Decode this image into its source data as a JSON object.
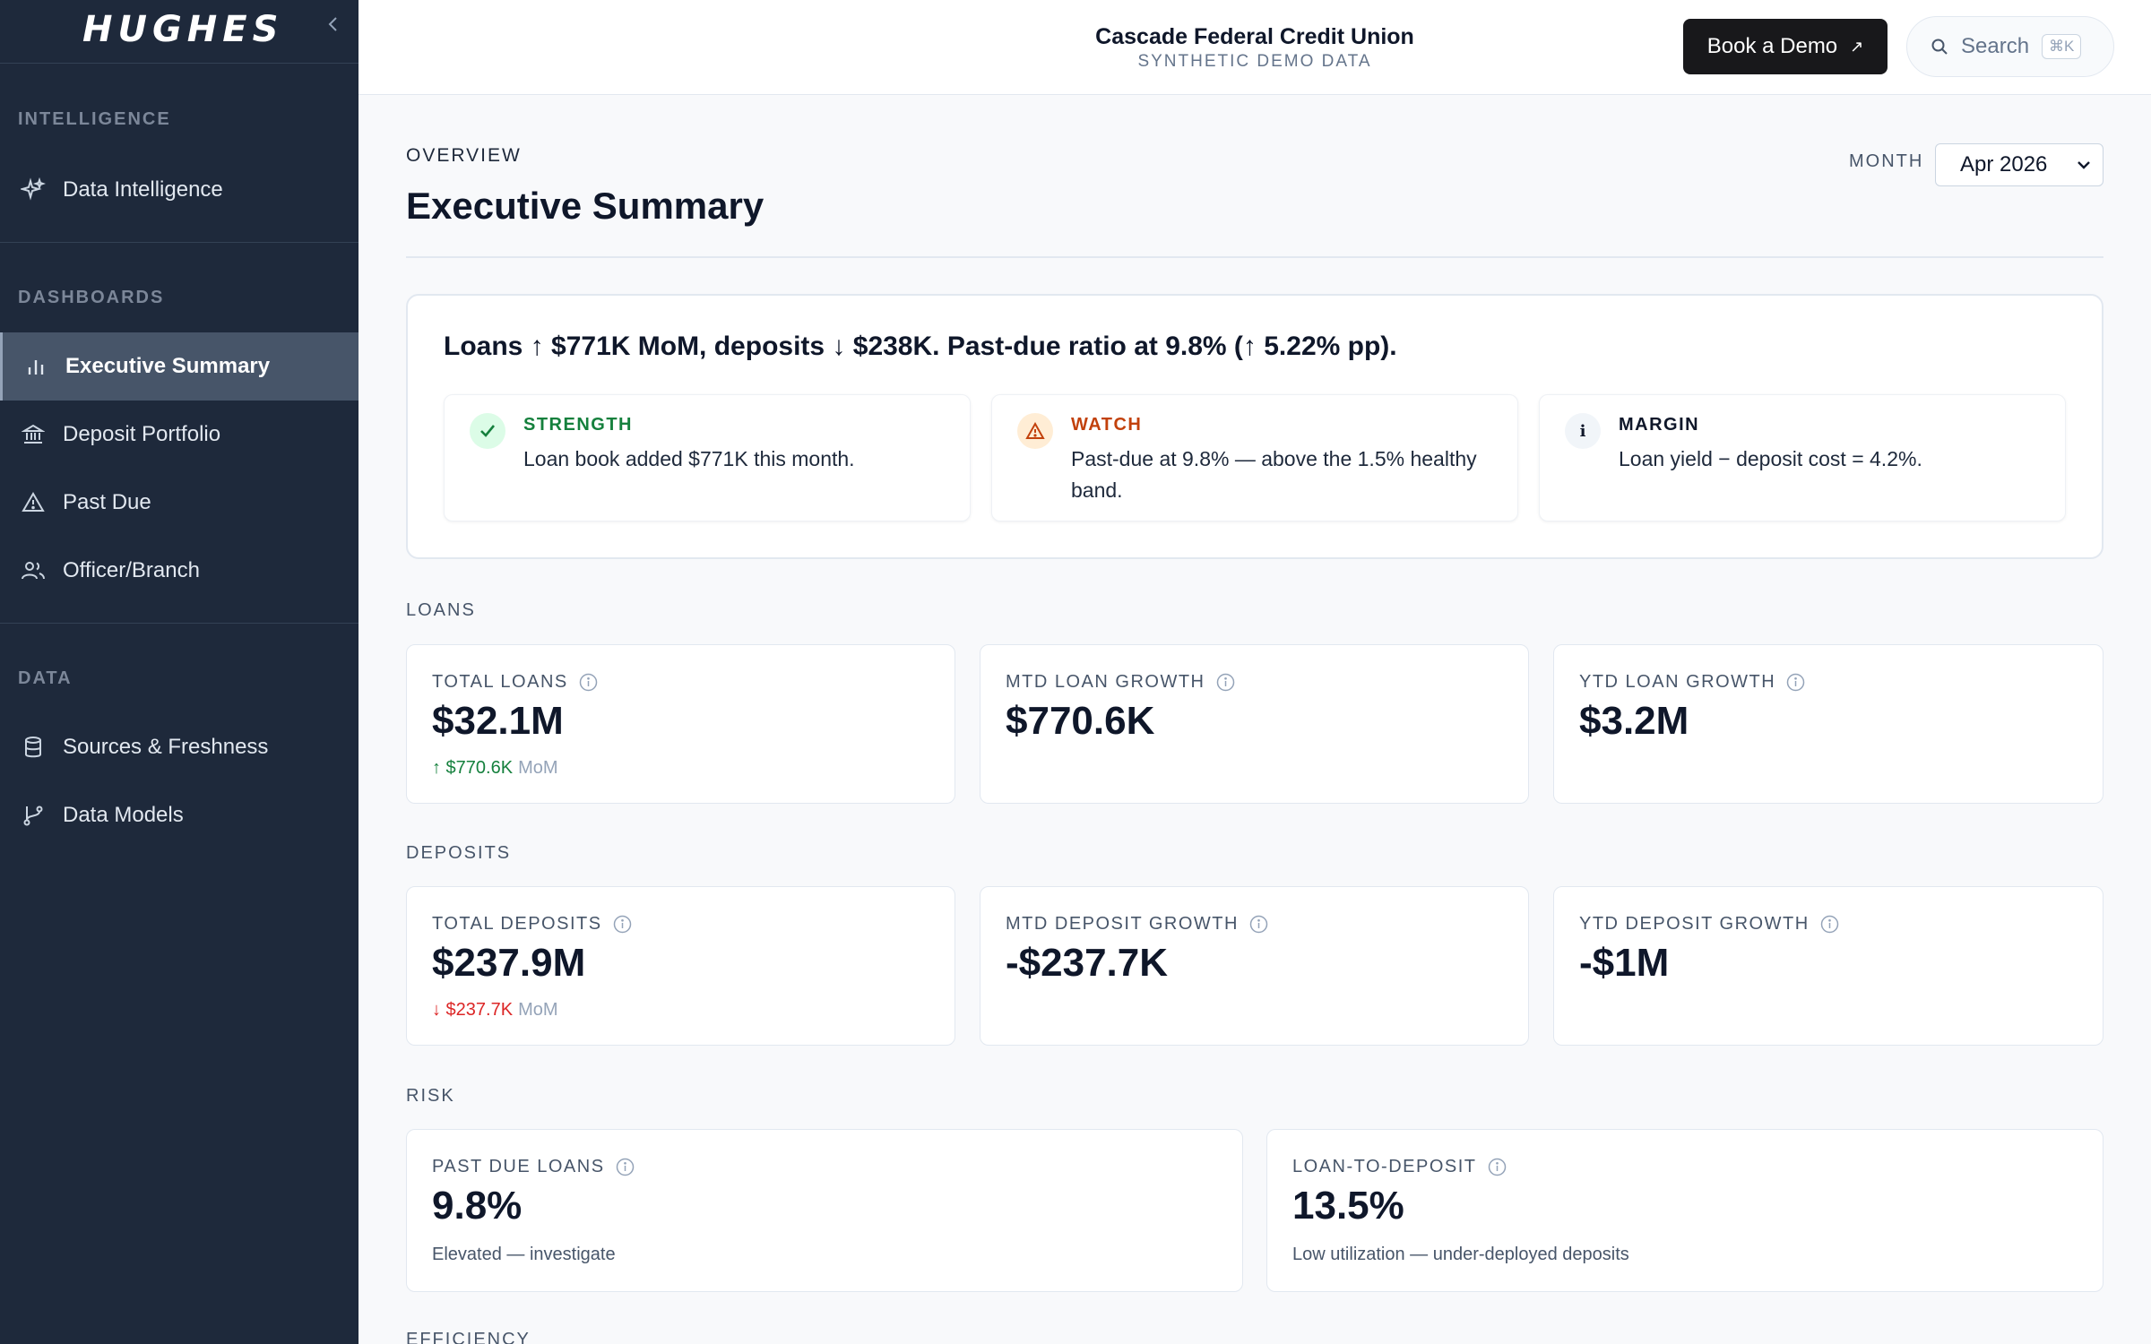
{
  "sidebar": {
    "brand": "HUGHES",
    "sections": [
      {
        "label": "INTELLIGENCE",
        "items": [
          {
            "label": "Data Intelligence",
            "icon": "sparkles-icon"
          }
        ]
      },
      {
        "label": "DASHBOARDS",
        "items": [
          {
            "label": "Executive Summary",
            "icon": "bar-chart-icon",
            "active": true
          },
          {
            "label": "Deposit Portfolio",
            "icon": "bank-icon"
          },
          {
            "label": "Past Due",
            "icon": "warning-icon"
          },
          {
            "label": "Officer/Branch",
            "icon": "users-icon"
          }
        ]
      },
      {
        "label": "DATA",
        "items": [
          {
            "label": "Sources & Freshness",
            "icon": "database-icon"
          },
          {
            "label": "Data Models",
            "icon": "branch-icon"
          }
        ]
      }
    ]
  },
  "header": {
    "org_name": "Cascade Federal Credit Union",
    "org_sub": "SYNTHETIC DEMO DATA",
    "demo_button": "Book a Demo",
    "search_label": "Search",
    "search_shortcut": "⌘K"
  },
  "main": {
    "overview": "OVERVIEW",
    "title": "Executive Summary",
    "month_label": "MONTH",
    "month_value": "Apr 2026",
    "headline": "Loans ↑ $771K MoM, deposits ↓ $238K. Past-due ratio at 9.8% (↑ 5.22% pp).",
    "insights": [
      {
        "kind": "STRENGTH",
        "text": "Loan book added $771K this month.",
        "color": "#15803d"
      },
      {
        "kind": "WATCH",
        "text": "Past-due at 9.8% — above the 1.5% healthy band.",
        "color": "#c2410c"
      },
      {
        "kind": "MARGIN",
        "text": "Loan yield − deposit cost = 4.2%.",
        "color": "#0f172a"
      }
    ],
    "groups": {
      "loans": "LOANS",
      "deposits": "DEPOSITS",
      "risk": "RISK",
      "efficiency": "EFFICIENCY"
    },
    "cards": {
      "total_loans": {
        "label": "TOTAL LOANS",
        "value": "$32.1M",
        "delta": "↑ $770.6K",
        "delta_suffix": "MoM"
      },
      "mtd_loan_growth": {
        "label": "MTD LOAN GROWTH",
        "value": "$770.6K"
      },
      "ytd_loan_growth": {
        "label": "YTD LOAN GROWTH",
        "value": "$3.2M"
      },
      "total_deposits": {
        "label": "TOTAL DEPOSITS",
        "value": "$237.9M",
        "delta": "↓ $237.7K",
        "delta_suffix": "MoM"
      },
      "mtd_deposit_growth": {
        "label": "MTD DEPOSIT GROWTH",
        "value": "-$237.7K"
      },
      "ytd_deposit_growth": {
        "label": "YTD DEPOSIT GROWTH",
        "value": "-$1M"
      },
      "past_due_loans": {
        "label": "PAST DUE LOANS",
        "value": "9.8%",
        "note": "Elevated — investigate"
      },
      "loan_to_deposit": {
        "label": "LOAN-TO-DEPOSIT",
        "value": "13.5%",
        "note": "Low utilization — under-deployed deposits"
      }
    }
  }
}
